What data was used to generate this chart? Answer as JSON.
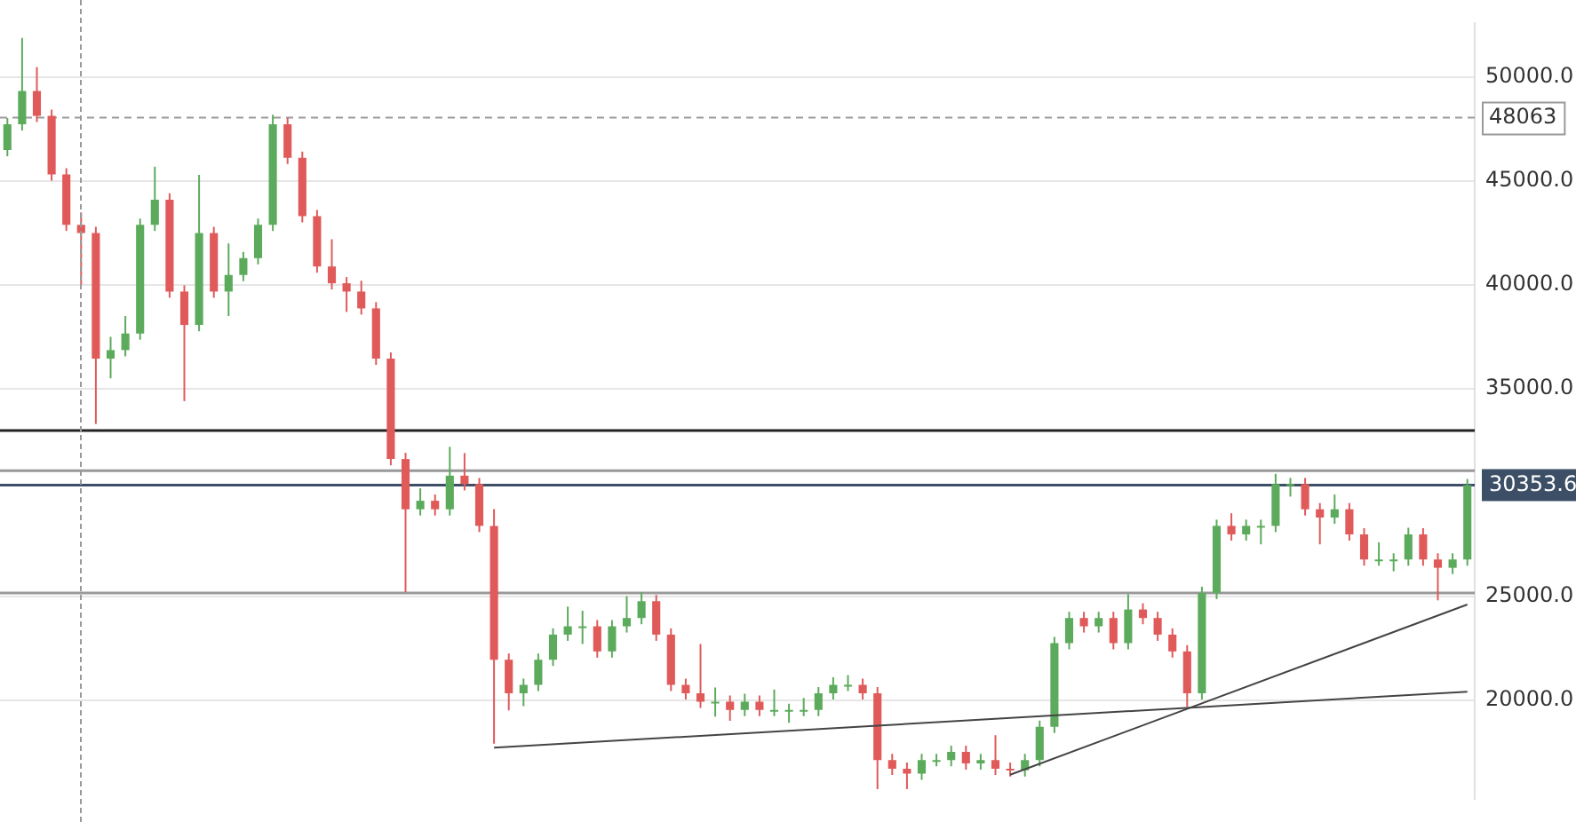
{
  "chart_data": {
    "type": "candlestick",
    "categories": [
      null,
      null,
      null,
      null,
      null,
      null,
      null,
      null,
      null,
      null,
      null,
      null,
      null,
      null,
      null,
      null,
      null,
      null,
      null,
      null,
      null,
      null,
      null,
      null,
      null,
      null,
      null,
      null,
      null,
      null,
      null,
      null,
      null,
      null,
      null,
      null,
      null,
      null,
      null,
      null,
      null,
      null,
      null,
      null,
      null,
      null,
      null,
      null,
      null,
      null,
      null,
      null,
      null,
      null,
      null,
      null,
      null,
      null,
      null,
      null,
      null,
      null,
      null,
      null,
      null,
      null,
      null,
      null,
      null,
      null,
      null,
      null,
      null,
      null,
      null,
      null,
      null,
      null,
      null,
      null,
      null,
      null,
      null,
      null,
      null,
      null,
      null,
      null,
      null,
      null,
      null,
      null,
      null,
      null,
      null,
      null,
      null,
      null,
      null,
      null
    ],
    "ohlc": [
      [
        46500,
        48040,
        46200,
        47740
      ],
      [
        47740,
        51900,
        47440,
        49350
      ],
      [
        49350,
        50500,
        47850,
        48150
      ],
      [
        48150,
        48450,
        45020,
        45320
      ],
      [
        45320,
        45620,
        42600,
        42900
      ],
      [
        42900,
        43500,
        40000,
        42500
      ],
      [
        42500,
        42800,
        33300,
        36450
      ],
      [
        36450,
        37500,
        35500,
        36860
      ],
      [
        36860,
        38500,
        36560,
        37660
      ],
      [
        37660,
        43200,
        37360,
        42900
      ],
      [
        42900,
        45700,
        42600,
        44110
      ],
      [
        44110,
        44410,
        39380,
        39680
      ],
      [
        39680,
        39980,
        34400,
        38070
      ],
      [
        38070,
        45300,
        37770,
        42500
      ],
      [
        42500,
        42800,
        39380,
        39680
      ],
      [
        39680,
        42000,
        38500,
        40480
      ],
      [
        40480,
        41590,
        40180,
        41290
      ],
      [
        41290,
        43200,
        40990,
        42900
      ],
      [
        42900,
        48200,
        42600,
        47740
      ],
      [
        47740,
        48040,
        45830,
        46130
      ],
      [
        46130,
        46430,
        43010,
        43310
      ],
      [
        43310,
        43610,
        40590,
        40890
      ],
      [
        40890,
        42200,
        39780,
        40080
      ],
      [
        40080,
        40380,
        38700,
        39680
      ],
      [
        39680,
        40200,
        38570,
        38870
      ],
      [
        38870,
        39170,
        36150,
        36450
      ],
      [
        36450,
        36750,
        31310,
        31610
      ],
      [
        31610,
        31910,
        25200,
        29190
      ],
      [
        29190,
        30200,
        28890,
        29600
      ],
      [
        29600,
        29900,
        28890,
        29190
      ],
      [
        29190,
        32200,
        28890,
        30810
      ],
      [
        30810,
        31900,
        30100,
        30400
      ],
      [
        30400,
        30700,
        28090,
        28390
      ],
      [
        28390,
        29200,
        17900,
        21940
      ],
      [
        21940,
        22240,
        19500,
        20320
      ],
      [
        20320,
        21030,
        19700,
        20730
      ],
      [
        20730,
        22240,
        20430,
        21940
      ],
      [
        21940,
        23450,
        21640,
        23150
      ],
      [
        23150,
        24500,
        22850,
        23550
      ],
      [
        23550,
        24300,
        22700,
        23550
      ],
      [
        23550,
        23850,
        22040,
        22340
      ],
      [
        22340,
        23850,
        22040,
        23550
      ],
      [
        23550,
        25000,
        23250,
        23950
      ],
      [
        23950,
        25200,
        23650,
        24760
      ],
      [
        24760,
        25060,
        22850,
        23150
      ],
      [
        23150,
        23450,
        20430,
        20730
      ],
      [
        20730,
        21030,
        20020,
        20320
      ],
      [
        20320,
        22700,
        19620,
        19920
      ],
      [
        19920,
        20600,
        19200,
        19920
      ],
      [
        19920,
        20220,
        19000,
        19520
      ],
      [
        19520,
        20300,
        19220,
        19920
      ],
      [
        19920,
        20220,
        19220,
        19520
      ],
      [
        19520,
        20500,
        19220,
        19520
      ],
      [
        19520,
        19820,
        18900,
        19520
      ],
      [
        19520,
        20100,
        19220,
        19520
      ],
      [
        19520,
        20620,
        19220,
        20320
      ],
      [
        20320,
        21100,
        20020,
        20730
      ],
      [
        20730,
        21200,
        20430,
        20730
      ],
      [
        20730,
        21030,
        20020,
        20320
      ],
      [
        20320,
        20620,
        15700,
        17100
      ],
      [
        17100,
        17400,
        16390,
        16690
      ],
      [
        16690,
        16990,
        15700,
        16450
      ],
      [
        16450,
        17400,
        16150,
        17100
      ],
      [
        17100,
        17400,
        16800,
        17100
      ],
      [
        17100,
        17800,
        16800,
        17500
      ],
      [
        17500,
        17800,
        16640,
        16940
      ],
      [
        16940,
        17400,
        16640,
        17100
      ],
      [
        17100,
        18300,
        16390,
        16690
      ],
      [
        16690,
        16990,
        16310,
        16610
      ],
      [
        16610,
        17400,
        16310,
        17100
      ],
      [
        17100,
        19010,
        16800,
        18710
      ],
      [
        18710,
        23040,
        18410,
        22740
      ],
      [
        22740,
        24250,
        22440,
        23950
      ],
      [
        23950,
        24250,
        23250,
        23550
      ],
      [
        23550,
        24250,
        23250,
        23950
      ],
      [
        23950,
        24250,
        22440,
        22740
      ],
      [
        22740,
        25100,
        22440,
        24360
      ],
      [
        24360,
        24660,
        23650,
        23950
      ],
      [
        23950,
        24250,
        22850,
        23150
      ],
      [
        23150,
        23450,
        22040,
        22340
      ],
      [
        22340,
        22640,
        19680,
        20320
      ],
      [
        20320,
        25460,
        20020,
        25160
      ],
      [
        25160,
        28690,
        24860,
        28390
      ],
      [
        28390,
        29000,
        27680,
        27980
      ],
      [
        27980,
        28690,
        27680,
        28390
      ],
      [
        28390,
        28690,
        27500,
        28390
      ],
      [
        28390,
        30900,
        28090,
        30400
      ],
      [
        30400,
        30700,
        29800,
        30400
      ],
      [
        30400,
        30700,
        28890,
        29190
      ],
      [
        29190,
        29490,
        27500,
        28790
      ],
      [
        28790,
        29900,
        28490,
        29190
      ],
      [
        29190,
        29490,
        27680,
        27980
      ],
      [
        27980,
        28280,
        26470,
        26770
      ],
      [
        26770,
        27600,
        26470,
        26770
      ],
      [
        26770,
        27070,
        26200,
        26770
      ],
      [
        26770,
        28300,
        26470,
        27980
      ],
      [
        27980,
        28280,
        26470,
        26770
      ],
      [
        26770,
        27070,
        24800,
        26370
      ],
      [
        26370,
        27070,
        26070,
        26770
      ],
      [
        26770,
        30650,
        26470,
        30350
      ]
    ],
    "series": [
      {
        "type": "line",
        "values": [
          null,
          null,
          null,
          null,
          null,
          null,
          null,
          null,
          null,
          null,
          null,
          null,
          null,
          null,
          null,
          null,
          null,
          null,
          null,
          null,
          null,
          null,
          null,
          null,
          null,
          null,
          null,
          null,
          null,
          null,
          null,
          null,
          null,
          17700,
          null,
          null,
          null,
          null,
          null,
          null,
          null,
          null,
          null,
          null,
          null,
          null,
          null,
          null,
          null,
          null,
          null,
          null,
          null,
          null,
          null,
          null,
          null,
          null,
          null,
          null,
          null,
          null,
          null,
          null,
          null,
          null,
          null,
          null,
          null,
          null,
          null,
          null,
          null,
          null,
          null,
          null,
          null,
          null,
          null,
          null,
          null,
          null,
          null,
          null,
          null,
          null,
          null,
          null,
          null,
          null,
          null,
          null,
          null,
          null,
          null,
          null,
          null,
          null,
          null,
          20400
        ],
        "color": "#444444"
      },
      {
        "type": "line",
        "values": [
          null,
          null,
          null,
          null,
          null,
          null,
          null,
          null,
          null,
          null,
          null,
          null,
          null,
          null,
          null,
          null,
          null,
          null,
          null,
          null,
          null,
          null,
          null,
          null,
          null,
          null,
          null,
          null,
          null,
          null,
          null,
          null,
          null,
          null,
          null,
          null,
          null,
          null,
          null,
          null,
          null,
          null,
          null,
          null,
          null,
          null,
          null,
          null,
          null,
          null,
          null,
          null,
          null,
          null,
          null,
          null,
          null,
          null,
          null,
          null,
          null,
          null,
          null,
          null,
          null,
          null,
          null,
          null,
          16400,
          null,
          null,
          null,
          null,
          null,
          null,
          null,
          null,
          null,
          null,
          null,
          null,
          null,
          null,
          null,
          null,
          null,
          null,
          null,
          null,
          null,
          null,
          null,
          null,
          null,
          null,
          null,
          null,
          null,
          null,
          24600
        ],
        "color": "#444444"
      }
    ],
    "ylim": [
      15250,
      52600
    ],
    "yticks": [
      {
        "value": 20000,
        "label": "20000.0"
      },
      {
        "value": 25000,
        "label": "25000.0"
      },
      {
        "value": 35000,
        "label": "35000.0"
      },
      {
        "value": 40000,
        "label": "40000.0"
      },
      {
        "value": 45000,
        "label": "45000.0"
      },
      {
        "value": 50000,
        "label": "50000.0"
      }
    ],
    "tick_labels": "y",
    "grid": "y",
    "legend": false,
    "ref_lines": [
      {
        "axis": "y",
        "value": 48063,
        "label": "48063",
        "color": "#999999",
        "line_style": "dashed"
      },
      {
        "axis": "y",
        "value": 30353.6,
        "label": "30353.6",
        "color": "#3d4f66",
        "line_style": "solid"
      },
      {
        "axis": "y",
        "value": 32980,
        "color": "#222222",
        "line_style": "solid"
      },
      {
        "axis": "y",
        "value": 31050,
        "color": "#999999",
        "line_style": "solid"
      },
      {
        "axis": "y",
        "value": 25160,
        "color": "#999999",
        "line_style": "solid"
      }
    ]
  }
}
